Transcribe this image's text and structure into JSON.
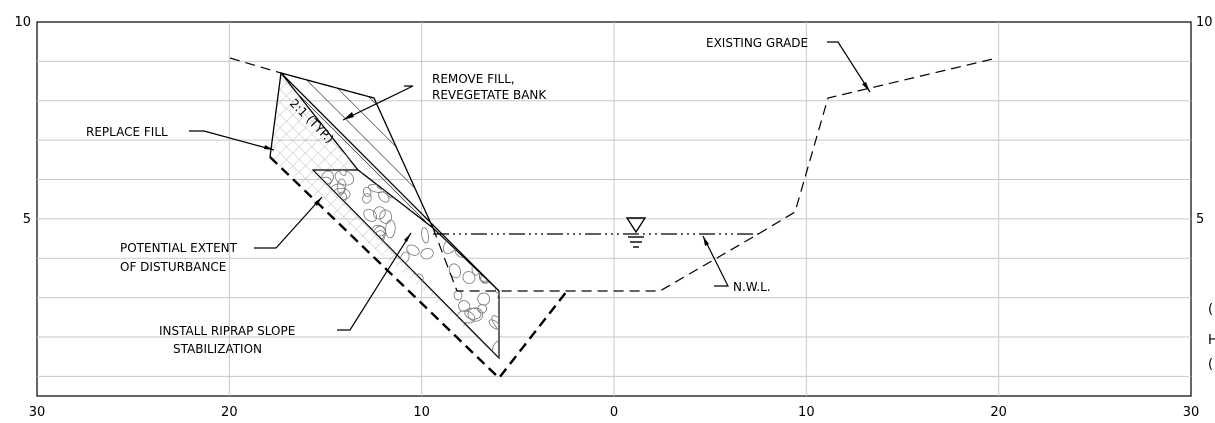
{
  "x_axis": {
    "ticks": [
      {
        "value": -30,
        "label": "30"
      },
      {
        "value": -20,
        "label": "20"
      },
      {
        "value": -10,
        "label": "10"
      },
      {
        "value": 0,
        "label": "0"
      },
      {
        "value": 10,
        "label": "10"
      },
      {
        "value": 20,
        "label": "20"
      },
      {
        "value": 30,
        "label": "30"
      }
    ]
  },
  "y_axis": {
    "left_ticks": [
      {
        "value": 10,
        "label": "10"
      },
      {
        "value": 5,
        "label": "5"
      }
    ],
    "right_ticks": [
      {
        "value": 10,
        "label": "10"
      },
      {
        "value": 5,
        "label": "5"
      }
    ],
    "right_cut_text": [
      "(",
      "H",
      "("
    ]
  },
  "labels": {
    "existing_grade": "EXISTING GRADE",
    "remove_fill_1": "REMOVE FILL,",
    "remove_fill_2": "REVEGETATE BANK",
    "replace_fill": "REPLACE FILL",
    "slope": "2:1 (TYP.)",
    "potential_1": "POTENTIAL EXTENT",
    "potential_2": "OF DISTURBANCE",
    "nwl": "N.W.L.",
    "riprap_1": "INSTALL RIPRAP SLOPE",
    "riprap_2": "STABILIZATION"
  },
  "colors": {
    "line": "#000000",
    "grid": "#c8c8c8",
    "crosshatch": "#bdbdbd"
  }
}
